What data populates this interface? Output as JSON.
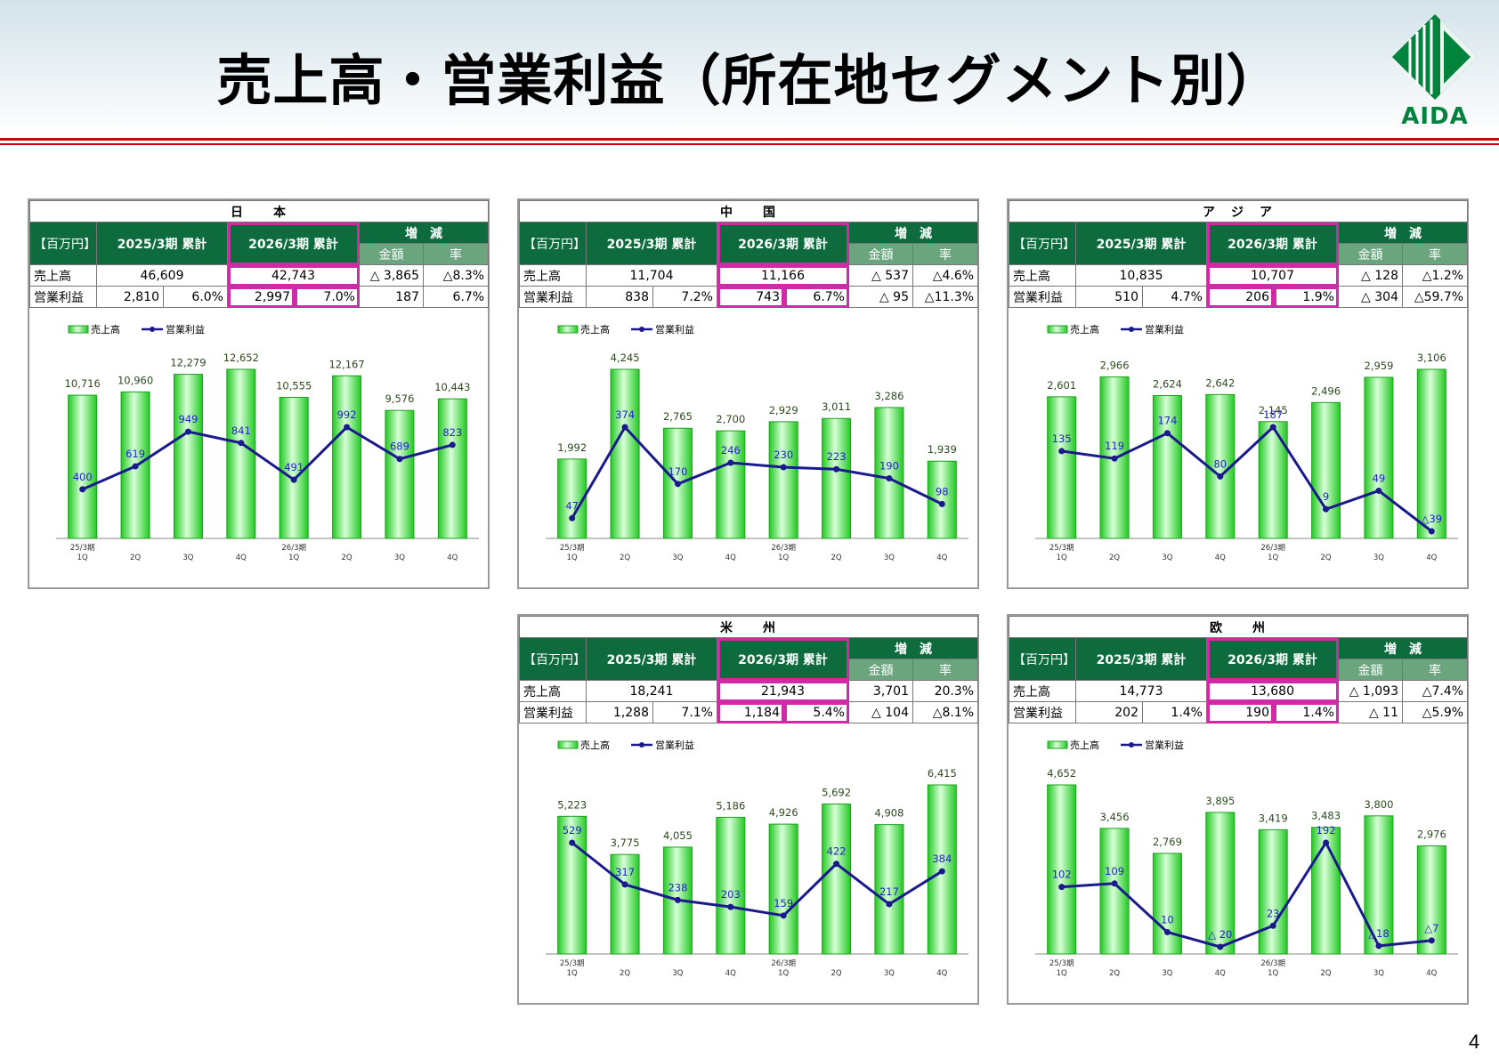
{
  "page": {
    "title": "売上高・営業利益（所在地セグメント別）",
    "logo_text": "AIDA",
    "page_number": "4"
  },
  "table_labels": {
    "unit": "【百万円】",
    "prev": "2025/3期 累計",
    "curr": "2026/3期 累計",
    "change": "増　減",
    "amount": "金額",
    "rate": "率",
    "sales": "売上高",
    "profit": "営業利益"
  },
  "legend": {
    "sales": "売上高",
    "profit": "営業利益"
  },
  "colors": {
    "bar": "#33dd33",
    "line": "#1a1a8c",
    "header_green": "#0e6b3d",
    "highlight": "#d12aa6",
    "title_rule": "#cc0000"
  },
  "segments": [
    {
      "name": "日　　本",
      "sales_prev": "46,609",
      "sales_curr": "42,743",
      "sales_chg_amt": "△ 3,865",
      "sales_chg_rate": "△8.3%",
      "profit_prev": "2,810",
      "margin_prev": "6.0%",
      "profit_curr": "2,997",
      "margin_curr": "7.0%",
      "profit_chg_amt": "187",
      "profit_chg_rate": "6.7%"
    },
    {
      "name": "中　　国",
      "sales_prev": "11,704",
      "sales_curr": "11,166",
      "sales_chg_amt": "△ 537",
      "sales_chg_rate": "△4.6%",
      "profit_prev": "838",
      "margin_prev": "7.2%",
      "profit_curr": "743",
      "margin_curr": "6.7%",
      "profit_chg_amt": "△ 95",
      "profit_chg_rate": "△11.3%"
    },
    {
      "name": "ア　ジ　ア",
      "sales_prev": "10,835",
      "sales_curr": "10,707",
      "sales_chg_amt": "△ 128",
      "sales_chg_rate": "△1.2%",
      "profit_prev": "510",
      "margin_prev": "4.7%",
      "profit_curr": "206",
      "margin_curr": "1.9%",
      "profit_chg_amt": "△ 304",
      "profit_chg_rate": "△59.7%"
    },
    {
      "name": "米　　州",
      "sales_prev": "18,241",
      "sales_curr": "21,943",
      "sales_chg_amt": "3,701",
      "sales_chg_rate": "20.3%",
      "profit_prev": "1,288",
      "margin_prev": "7.1%",
      "profit_curr": "1,184",
      "margin_curr": "5.4%",
      "profit_chg_amt": "△ 104",
      "profit_chg_rate": "△8.1%"
    },
    {
      "name": "欧　　州",
      "sales_prev": "14,773",
      "sales_curr": "13,680",
      "sales_chg_amt": "△ 1,093",
      "sales_chg_rate": "△7.4%",
      "profit_prev": "202",
      "margin_prev": "1.4%",
      "profit_curr": "190",
      "margin_curr": "1.4%",
      "profit_chg_amt": "△ 11",
      "profit_chg_rate": "△5.9%"
    }
  ],
  "chart_data": [
    {
      "type": "bar",
      "segment": "日本",
      "categories": [
        "25/3期 1Q",
        "2Q",
        "3Q",
        "4Q",
        "26/3期 1Q",
        "2Q",
        "3Q",
        "4Q"
      ],
      "series": [
        {
          "name": "売上高",
          "type": "bar",
          "values": [
            10716,
            10960,
            12279,
            12652,
            10555,
            12167,
            9576,
            10443
          ],
          "labels": [
            "10,716",
            "10,960",
            "12,279",
            "12,652",
            "10,555",
            "12,167",
            "9,576",
            "10,443"
          ]
        },
        {
          "name": "営業利益",
          "type": "line",
          "values": [
            400,
            619,
            949,
            841,
            491,
            992,
            689,
            823
          ],
          "labels": [
            "400",
            "619",
            "949",
            "841",
            "491",
            "992",
            "689",
            "823"
          ]
        }
      ]
    },
    {
      "type": "bar",
      "segment": "中国",
      "categories": [
        "25/3期 1Q",
        "2Q",
        "3Q",
        "4Q",
        "26/3期 1Q",
        "2Q",
        "3Q",
        "4Q"
      ],
      "series": [
        {
          "name": "売上高",
          "type": "bar",
          "values": [
            1992,
            4245,
            2765,
            2700,
            2929,
            3011,
            3286,
            1939
          ],
          "labels": [
            "1,992",
            "4,245",
            "2,765",
            "2,700",
            "2,929",
            "3,011",
            "3,286",
            "1,939"
          ]
        },
        {
          "name": "営業利益",
          "type": "line",
          "values": [
            47,
            374,
            170,
            246,
            230,
            223,
            190,
            98
          ],
          "labels": [
            "47",
            "374",
            "170",
            "246",
            "230",
            "223",
            "190",
            "98"
          ]
        }
      ]
    },
    {
      "type": "bar",
      "segment": "アジア",
      "categories": [
        "25/3期 1Q",
        "2Q",
        "3Q",
        "4Q",
        "26/3期 1Q",
        "2Q",
        "3Q",
        "4Q"
      ],
      "series": [
        {
          "name": "売上高",
          "type": "bar",
          "values": [
            2601,
            2966,
            2624,
            2642,
            2145,
            2496,
            2959,
            3106
          ],
          "labels": [
            "2,601",
            "2,966",
            "2,624",
            "2,642",
            "2,145",
            "2,496",
            "2,959",
            "3,106"
          ]
        },
        {
          "name": "営業利益",
          "type": "line",
          "values": [
            135,
            119,
            174,
            80,
            187,
            9,
            49,
            -39
          ],
          "labels": [
            "135",
            "119",
            "174",
            "80",
            "187",
            "9",
            "49",
            "△39"
          ]
        }
      ]
    },
    {
      "type": "bar",
      "segment": "米州",
      "categories": [
        "25/3期 1Q",
        "2Q",
        "3Q",
        "4Q",
        "26/3期 1Q",
        "2Q",
        "3Q",
        "4Q"
      ],
      "series": [
        {
          "name": "売上高",
          "type": "bar",
          "values": [
            5223,
            3775,
            4055,
            5186,
            4926,
            5692,
            4908,
            6415
          ],
          "labels": [
            "5,223",
            "3,775",
            "4,055",
            "5,186",
            "4,926",
            "5,692",
            "4,908",
            "6,415"
          ]
        },
        {
          "name": "営業利益",
          "type": "line",
          "values": [
            529,
            317,
            238,
            203,
            159,
            422,
            217,
            384
          ],
          "labels": [
            "529",
            "317",
            "238",
            "203",
            "159",
            "422",
            "217",
            "384"
          ]
        }
      ]
    },
    {
      "type": "bar",
      "segment": "欧州",
      "categories": [
        "25/3期 1Q",
        "2Q",
        "3Q",
        "4Q",
        "26/3期 1Q",
        "2Q",
        "3Q",
        "4Q"
      ],
      "series": [
        {
          "name": "売上高",
          "type": "bar",
          "values": [
            4652,
            3456,
            2769,
            3895,
            3419,
            3483,
            3800,
            2976
          ],
          "labels": [
            "4,652",
            "3,456",
            "2,769",
            "3,895",
            "3,419",
            "3,483",
            "3,800",
            "2,976"
          ]
        },
        {
          "name": "営業利益",
          "type": "line",
          "values": [
            102,
            109,
            10,
            -20,
            23,
            192,
            -18,
            -7
          ],
          "labels": [
            "102",
            "109",
            "10",
            "△ 20",
            "23",
            "192",
            "△18",
            "△7"
          ]
        }
      ]
    }
  ]
}
